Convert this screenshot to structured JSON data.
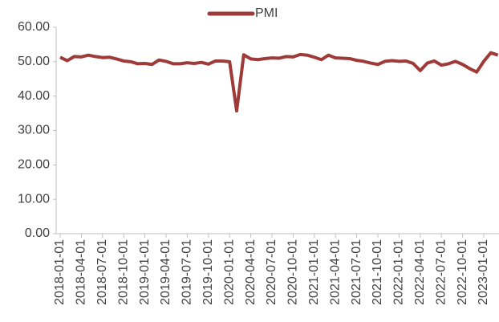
{
  "chart_data": {
    "type": "line",
    "categories": [
      "2018-01-01",
      null,
      null,
      "2018-04-01",
      null,
      null,
      "2018-07-01",
      null,
      null,
      "2018-10-01",
      null,
      null,
      "2019-01-01",
      null,
      null,
      "2019-04-01",
      null,
      null,
      "2019-07-01",
      null,
      null,
      "2019-10-01",
      null,
      null,
      "2020-01-01",
      null,
      null,
      "2020-04-01",
      null,
      null,
      "2020-07-01",
      null,
      null,
      "2020-10-01",
      null,
      null,
      "2021-01-01",
      null,
      null,
      "2021-04-01",
      null,
      null,
      "2021-07-01",
      null,
      null,
      "2021-10-01",
      null,
      null,
      "2022-01-01",
      null,
      null,
      "2022-04-01",
      null,
      null,
      "2022-07-01",
      null,
      null,
      "2022-10-01",
      null,
      null,
      "2023-01-01",
      null,
      null
    ],
    "series": [
      {
        "name": "PMI",
        "color": "#9e3a37",
        "values": [
          51.3,
          50.3,
          51.5,
          51.4,
          51.9,
          51.5,
          51.2,
          51.3,
          50.8,
          50.2,
          50.0,
          49.4,
          49.5,
          49.2,
          50.5,
          50.1,
          49.4,
          49.4,
          49.7,
          49.5,
          49.8,
          49.3,
          50.2,
          50.2,
          50.0,
          35.7,
          52.0,
          50.8,
          50.6,
          50.9,
          51.1,
          51.0,
          51.5,
          51.4,
          52.1,
          51.9,
          51.3,
          50.6,
          51.9,
          51.1,
          51.0,
          50.9,
          50.4,
          50.1,
          49.6,
          49.2,
          50.1,
          50.3,
          50.1,
          50.2,
          49.5,
          47.4,
          49.6,
          50.2,
          49.0,
          49.4,
          50.1,
          49.2,
          48.0,
          47.0,
          50.1,
          52.6,
          51.9
        ]
      }
    ],
    "ylim": [
      0,
      60
    ],
    "yticks": [
      {
        "value": 0,
        "label": "0.00"
      },
      {
        "value": 10,
        "label": "10.00"
      },
      {
        "value": 20,
        "label": "20.00"
      },
      {
        "value": 30,
        "label": "30.00"
      },
      {
        "value": 40,
        "label": "40.00"
      },
      {
        "value": 50,
        "label": "50.00"
      },
      {
        "value": 60,
        "label": "60.00"
      }
    ],
    "legend": "top"
  }
}
